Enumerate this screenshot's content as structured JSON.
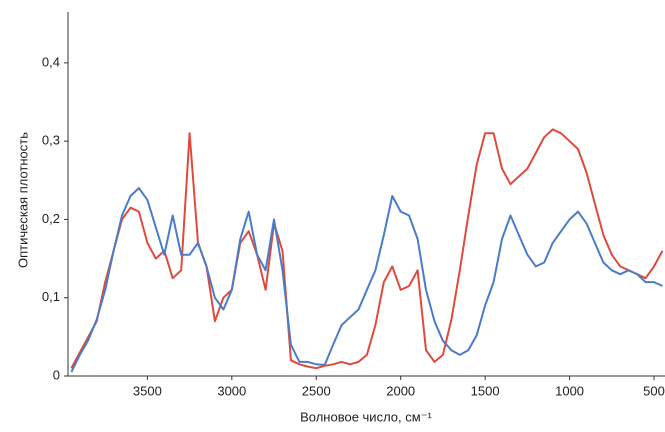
{
  "chart_data": {
    "type": "line",
    "x_label": "Волновое число, см⁻¹",
    "y_label": "Оптическая плотность",
    "x": [
      3950,
      3900,
      3850,
      3800,
      3750,
      3700,
      3650,
      3600,
      3550,
      3500,
      3450,
      3400,
      3350,
      3300,
      3250,
      3200,
      3150,
      3100,
      3050,
      3000,
      2950,
      2900,
      2850,
      2800,
      2750,
      2700,
      2650,
      2600,
      2550,
      2500,
      2450,
      2400,
      2350,
      2300,
      2250,
      2200,
      2150,
      2100,
      2050,
      2000,
      1950,
      1900,
      1850,
      1800,
      1750,
      1700,
      1650,
      1600,
      1550,
      1500,
      1450,
      1400,
      1350,
      1300,
      1250,
      1200,
      1150,
      1100,
      1050,
      1000,
      950,
      900,
      850,
      800,
      750,
      700,
      650,
      600,
      550,
      500,
      450
    ],
    "series": [
      {
        "color": "#e04a3c",
        "values": [
          0.01,
          0.03,
          0.05,
          0.07,
          0.12,
          0.16,
          0.2,
          0.215,
          0.21,
          0.17,
          0.15,
          0.16,
          0.125,
          0.135,
          0.31,
          0.17,
          0.14,
          0.07,
          0.1,
          0.11,
          0.17,
          0.185,
          0.155,
          0.11,
          0.195,
          0.16,
          0.02,
          0.015,
          0.012,
          0.01,
          0.013,
          0.015,
          0.018,
          0.015,
          0.018,
          0.027,
          0.065,
          0.12,
          0.14,
          0.11,
          0.115,
          0.135,
          0.033,
          0.018,
          0.027,
          0.072,
          0.135,
          0.205,
          0.27,
          0.31,
          0.31,
          0.265,
          0.245,
          0.255,
          0.265,
          0.285,
          0.305,
          0.315,
          0.31,
          0.3,
          0.29,
          0.26,
          0.22,
          0.18,
          0.155,
          0.14,
          0.135,
          0.13,
          0.125,
          0.14,
          0.16
        ]
      },
      {
        "color": "#4a7cc8",
        "values": [
          0.005,
          0.027,
          0.046,
          0.072,
          0.11,
          0.16,
          0.205,
          0.23,
          0.24,
          0.225,
          0.19,
          0.155,
          0.205,
          0.155,
          0.155,
          0.17,
          0.14,
          0.1,
          0.085,
          0.11,
          0.175,
          0.21,
          0.155,
          0.135,
          0.2,
          0.135,
          0.04,
          0.018,
          0.018,
          0.015,
          0.014,
          0.04,
          0.065,
          0.075,
          0.085,
          0.11,
          0.135,
          0.18,
          0.23,
          0.21,
          0.205,
          0.175,
          0.11,
          0.07,
          0.045,
          0.033,
          0.027,
          0.033,
          0.052,
          0.09,
          0.12,
          0.175,
          0.205,
          0.18,
          0.155,
          0.14,
          0.145,
          0.17,
          0.185,
          0.2,
          0.21,
          0.195,
          0.17,
          0.145,
          0.135,
          0.13,
          0.135,
          0.13,
          0.12,
          0.12,
          0.115
        ]
      }
    ],
    "xlim": [
      3970,
      435
    ],
    "ylim": [
      0,
      0.465
    ],
    "xticks": [
      3500,
      3000,
      2500,
      2000,
      1500,
      1000,
      500
    ],
    "yticks": [
      0,
      {
        "value": 0.1,
        "label": "0,1"
      },
      {
        "value": 0.2,
        "label": "0,2"
      },
      {
        "value": 0.3,
        "label": "0,3"
      },
      {
        "value": 0.4,
        "label": "0,4"
      }
    ],
    "grid": false
  }
}
